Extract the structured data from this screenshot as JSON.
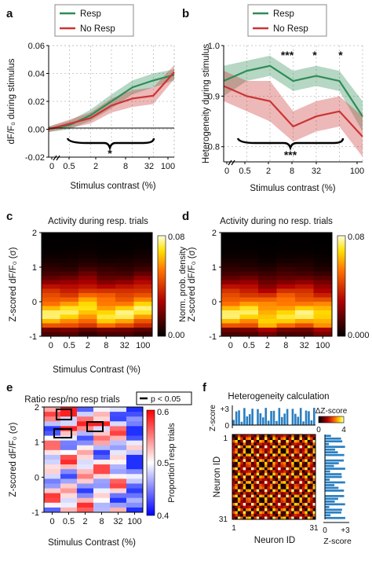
{
  "chart_data": [
    {
      "panel": "a",
      "type": "line",
      "xlabel": "Stimulus contrast (%)",
      "ylabel": "dF/F₀ during stimulus",
      "x_tick_labels": [
        "0",
        "0.5",
        "2",
        "8",
        "32",
        "100"
      ],
      "y_tick_labels": [
        "-0.02",
        "0.00",
        "0.02",
        "0.04",
        "0.06"
      ],
      "ylim": [
        -0.02,
        0.06
      ],
      "x_index": [
        0,
        1,
        2,
        3,
        4,
        5,
        6
      ],
      "legend": [
        "Resp",
        "No Resp"
      ],
      "series": [
        {
          "name": "Resp",
          "color": "#2e8b57",
          "values": [
            0.0,
            0.003,
            0.01,
            0.02,
            0.03,
            0.035,
            0.039
          ],
          "lower": [
            -0.002,
            0.0,
            0.006,
            0.015,
            0.025,
            0.03,
            0.035
          ],
          "upper": [
            0.002,
            0.006,
            0.014,
            0.025,
            0.035,
            0.04,
            0.043
          ]
        },
        {
          "name": "No Resp",
          "color": "#cc3333",
          "values": [
            0.0,
            0.004,
            0.008,
            0.017,
            0.022,
            0.024,
            0.041
          ],
          "lower": [
            -0.002,
            0.001,
            0.004,
            0.012,
            0.016,
            0.018,
            0.036
          ],
          "upper": [
            0.002,
            0.007,
            0.012,
            0.022,
            0.028,
            0.03,
            0.046
          ]
        }
      ],
      "significance": "*"
    },
    {
      "panel": "b",
      "type": "line",
      "xlabel": "Stimulus contrast (%)",
      "ylabel": "Heterogeneity during stimulus",
      "x_tick_labels": [
        "0",
        "0.5",
        "2",
        "8",
        "32",
        "100"
      ],
      "y_tick_labels": [
        "0.8",
        "0.9",
        "1.0"
      ],
      "ylim": [
        0.77,
        1.0
      ],
      "x_index": [
        0,
        1,
        2,
        3,
        4,
        5,
        6
      ],
      "legend": [
        "Resp",
        "No Resp"
      ],
      "series": [
        {
          "name": "Resp",
          "color": "#2e8b57",
          "values": [
            0.93,
            0.95,
            0.96,
            0.93,
            0.94,
            0.93,
            0.86
          ],
          "lower": [
            0.9,
            0.93,
            0.94,
            0.91,
            0.92,
            0.91,
            0.83
          ],
          "upper": [
            0.96,
            0.97,
            0.98,
            0.95,
            0.96,
            0.95,
            0.89
          ]
        },
        {
          "name": "No Resp",
          "color": "#cc3333",
          "values": [
            0.92,
            0.9,
            0.89,
            0.84,
            0.86,
            0.87,
            0.82
          ],
          "lower": [
            0.89,
            0.87,
            0.85,
            0.81,
            0.83,
            0.84,
            0.78
          ],
          "upper": [
            0.95,
            0.93,
            0.93,
            0.87,
            0.89,
            0.9,
            0.86
          ]
        }
      ],
      "significance_top": [
        "***",
        "*",
        "*"
      ],
      "significance_bottom": "***"
    },
    {
      "panel": "c",
      "type": "heatmap",
      "title": "Activity during resp. trials",
      "xlabel": "Stimulus Contrast (%)",
      "ylabel": "Z-scored dF/F₀ (σ)",
      "x_tick_labels": [
        "0",
        "0.5",
        "2",
        "8",
        "32",
        "100"
      ],
      "y_tick_labels": [
        "-1",
        "0",
        "1",
        "2"
      ],
      "colorbar_label": "Norm. prob. density",
      "colorbar_ticks": [
        "0.00",
        "0.08"
      ]
    },
    {
      "panel": "d",
      "type": "heatmap",
      "title": "Activity during no resp. trials",
      "x_tick_labels": [
        "0",
        "0.5",
        "2",
        "8",
        "32",
        "100"
      ],
      "y_tick_labels": [
        "-1",
        "0",
        "1",
        "2"
      ],
      "ylabel": "Z-scored dF/F₀ (σ)",
      "colorbar_ticks": [
        "0.000",
        "0.08"
      ]
    },
    {
      "panel": "e",
      "type": "heatmap",
      "title": "Ratio resp/no resp trials",
      "legend": "p < 0.05",
      "xlabel": "Stimulus Contrast (%)",
      "ylabel": "Z-scored dF/F₀ (σ)",
      "x_tick_labels": [
        "0",
        "0.5",
        "2",
        "8",
        "32",
        "100"
      ],
      "y_tick_labels": [
        "-1",
        "0",
        "1",
        "2"
      ],
      "colorbar_label": "Proportion resp trials",
      "colorbar_ticks": [
        "0.4",
        "0.5",
        "0.6"
      ]
    },
    {
      "panel": "f",
      "type": "heatmap",
      "title": "Heterogeneity calculation",
      "xlabel": "Neuron ID",
      "ylabel": "Neuron ID",
      "x_tick_labels": [
        "1",
        "31"
      ],
      "y_tick_labels": [
        "1",
        "31"
      ],
      "top_bar_label": "Z-score",
      "top_bar_ticks": [
        "+3",
        "0"
      ],
      "side_bar_label": "Z-score",
      "side_bar_ticks": [
        "0",
        "+3"
      ],
      "colorbar_label": "ΔZ-score",
      "colorbar_ticks": [
        "0",
        "4"
      ]
    }
  ],
  "panel_letters": [
    "a",
    "b",
    "c",
    "d",
    "e",
    "f"
  ]
}
